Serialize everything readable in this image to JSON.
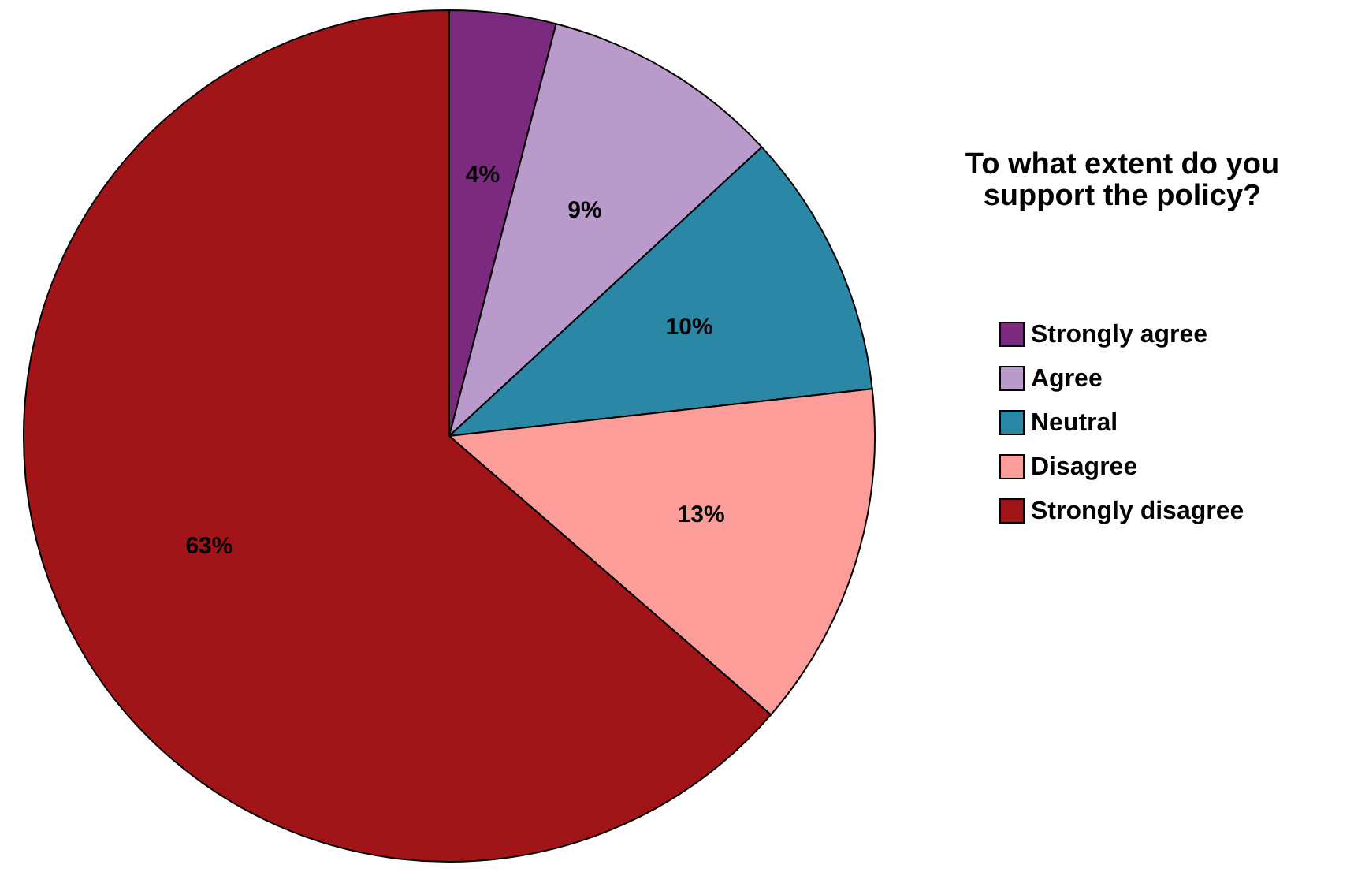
{
  "chart_data": {
    "type": "pie",
    "legend_title": "To what extent do you support the policy?",
    "categories": [
      "Strongly agree",
      "Agree",
      "Neutral",
      "Disagree",
      "Strongly disagree"
    ],
    "values": [
      4,
      9,
      10,
      13,
      63
    ],
    "value_labels": [
      "4%",
      "9%",
      "10%",
      "13%",
      "63%"
    ],
    "colors": [
      "#7b2a7f",
      "#b99acb",
      "#2a87a6",
      "#fd9d9a",
      "#a11519"
    ],
    "legend": "right"
  }
}
